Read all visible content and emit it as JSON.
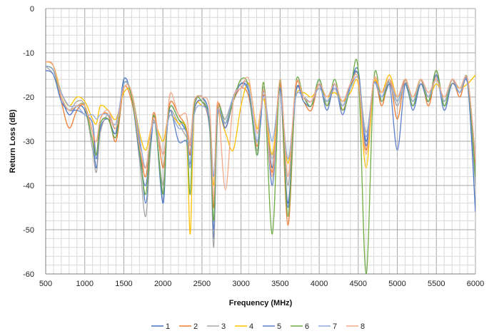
{
  "chart_data": {
    "type": "line",
    "title": "",
    "xlabel": "Frequency (MHz)",
    "ylabel": "Return Loss (dB)",
    "xlim": [
      500,
      6000
    ],
    "ylim": [
      -60,
      0
    ],
    "x_ticks": [
      500,
      1000,
      1500,
      2000,
      2500,
      3000,
      3500,
      4000,
      4500,
      5000,
      5500,
      6000
    ],
    "y_ticks": [
      0,
      -10,
      -20,
      -30,
      -40,
      -50,
      -60
    ],
    "grid": true,
    "legend_position": "bottom",
    "x": [
      500,
      600,
      700,
      800,
      900,
      1000,
      1100,
      1150,
      1200,
      1300,
      1400,
      1500,
      1600,
      1700,
      1780,
      1850,
      1900,
      2000,
      2050,
      2100,
      2200,
      2300,
      2350,
      2400,
      2500,
      2600,
      2650,
      2700,
      2800,
      2900,
      3000,
      3100,
      3200,
      3250,
      3300,
      3400,
      3500,
      3600,
      3700,
      3800,
      3900,
      4000,
      4100,
      4200,
      4300,
      4400,
      4500,
      4600,
      4700,
      4800,
      4900,
      5000,
      5100,
      5200,
      5300,
      5400,
      5500,
      5600,
      5700,
      5800,
      5900,
      6000
    ],
    "series": [
      {
        "name": "1",
        "color": "#4472C4",
        "values": [
          -13,
          -14,
          -20,
          -24,
          -22,
          -23,
          -30,
          -36,
          -27,
          -25,
          -28,
          -16,
          -20,
          -30,
          -44,
          -30,
          -25,
          -44,
          -28,
          -22,
          -25,
          -28,
          -33,
          -22,
          -20,
          -26,
          -52,
          -23,
          -26,
          -20,
          -17,
          -19,
          -30,
          -24,
          -19,
          -36,
          -18,
          -44,
          -19,
          -20,
          -22,
          -16,
          -22,
          -17,
          -22,
          -17,
          -14,
          -30,
          -17,
          -21,
          -17,
          -20,
          -17,
          -22,
          -17,
          -21,
          -14,
          -22,
          -17,
          -19,
          -17,
          -46
        ]
      },
      {
        "name": "2",
        "color": "#ED7D31",
        "values": [
          -12,
          -13,
          -21,
          -27,
          -23,
          -22,
          -28,
          -33,
          -25,
          -24,
          -30,
          -18,
          -21,
          -31,
          -38,
          -27,
          -24,
          -36,
          -27,
          -21,
          -24,
          -27,
          -33,
          -23,
          -21,
          -27,
          -45,
          -22,
          -27,
          -21,
          -18,
          -20,
          -31,
          -25,
          -20,
          -37,
          -17,
          -49,
          -18,
          -21,
          -23,
          -17,
          -22,
          -18,
          -23,
          -18,
          -15,
          -32,
          -16,
          -22,
          -16,
          -25,
          -16,
          -21,
          -16,
          -22,
          -15,
          -21,
          -16,
          -20,
          -16,
          -35
        ]
      },
      {
        "name": "3",
        "color": "#A5A5A5",
        "values": [
          -13,
          -15,
          -20,
          -23,
          -21,
          -22,
          -32,
          -37,
          -28,
          -24,
          -27,
          -17,
          -20,
          -34,
          -47,
          -29,
          -26,
          -40,
          -27,
          -23,
          -26,
          -29,
          -30,
          -22,
          -20,
          -28,
          -54,
          -24,
          -25,
          -20,
          -17,
          -18,
          -32,
          -24,
          -18,
          -34,
          -18,
          -40,
          -19,
          -20,
          -21,
          -17,
          -21,
          -17,
          -22,
          -17,
          -15,
          -28,
          -17,
          -20,
          -17,
          -22,
          -17,
          -21,
          -17,
          -20,
          -15,
          -22,
          -17,
          -19,
          -17,
          -40
        ]
      },
      {
        "name": "4",
        "color": "#FFC000",
        "values": [
          -12,
          -13,
          -19,
          -22,
          -20,
          -21,
          -25,
          -26,
          -22,
          -23,
          -25,
          -19,
          -19,
          -28,
          -32,
          -27,
          -26,
          -30,
          -26,
          -24,
          -26,
          -28,
          -51,
          -24,
          -22,
          -25,
          -40,
          -24,
          -28,
          -32,
          -22,
          -17,
          -27,
          -23,
          -21,
          -33,
          -19,
          -35,
          -20,
          -19,
          -20,
          -18,
          -20,
          -19,
          -21,
          -19,
          -17,
          -36,
          -17,
          -19,
          -15,
          -20,
          -16,
          -20,
          -16,
          -20,
          -17,
          -20,
          -17,
          -18,
          -17,
          -15
        ]
      },
      {
        "name": "5",
        "color": "#5B7FCC",
        "values": [
          -14,
          -15,
          -21,
          -23,
          -23,
          -24,
          -26,
          -34,
          -26,
          -25,
          -29,
          -17,
          -20,
          -33,
          -40,
          -29,
          -25,
          -42,
          -28,
          -23,
          -30,
          -30,
          -35,
          -23,
          -21,
          -27,
          -50,
          -24,
          -27,
          -21,
          -17,
          -19,
          -33,
          -26,
          -19,
          -40,
          -18,
          -45,
          -19,
          -21,
          -22,
          -17,
          -23,
          -17,
          -24,
          -17,
          -15,
          -31,
          -17,
          -20,
          -17,
          -32,
          -17,
          -23,
          -17,
          -21,
          -15,
          -23,
          -17,
          -19,
          -17,
          -38
        ]
      },
      {
        "name": "6",
        "color": "#70AD47",
        "values": [
          -13,
          -14,
          -20,
          -23,
          -22,
          -22,
          -30,
          -33,
          -26,
          -25,
          -29,
          -17,
          -20,
          -32,
          -42,
          -28,
          -25,
          -42,
          -27,
          -22,
          -25,
          -28,
          -42,
          -22,
          -21,
          -26,
          -48,
          -23,
          -26,
          -21,
          -16,
          -18,
          -33,
          -24,
          -18,
          -51,
          -16,
          -47,
          -17,
          -20,
          -22,
          -16,
          -22,
          -16,
          -23,
          -18,
          -14,
          -60,
          -16,
          -21,
          -16,
          -21,
          -16,
          -22,
          -16,
          -21,
          -14,
          -22,
          -16,
          -19,
          -16,
          -38
        ]
      },
      {
        "name": "7",
        "color": "#8EA9DB",
        "values": [
          -13,
          -14,
          -19,
          -22,
          -22,
          -24,
          -24,
          -25,
          -24,
          -24,
          -26,
          -17,
          -19,
          -29,
          -36,
          -28,
          -26,
          -33,
          -27,
          -24,
          -27,
          -28,
          -36,
          -24,
          -22,
          -25,
          -38,
          -23,
          -26,
          -20,
          -18,
          -18,
          -30,
          -24,
          -20,
          -30,
          -19,
          -34,
          -20,
          -20,
          -21,
          -18,
          -21,
          -18,
          -22,
          -18,
          -16,
          -29,
          -17,
          -20,
          -16,
          -21,
          -16,
          -21,
          -16,
          -20,
          -16,
          -21,
          -16,
          -19,
          -16,
          -34
        ]
      },
      {
        "name": "8",
        "color": "#F4A988",
        "values": [
          -12,
          -13,
          -20,
          -23,
          -22,
          -22,
          -28,
          -30,
          -25,
          -23,
          -27,
          -18,
          -19,
          -31,
          -36,
          -27,
          -25,
          -33,
          -26,
          -19,
          -24,
          -24,
          -31,
          -21,
          -20,
          -23,
          -43,
          -21,
          -41,
          -21,
          -18,
          -16,
          -28,
          -23,
          -19,
          -38,
          -16,
          -38,
          -17,
          -20,
          -21,
          -17,
          -20,
          -17,
          -21,
          -17,
          -16,
          -33,
          -16,
          -19,
          -16,
          -20,
          -16,
          -20,
          -16,
          -19,
          -16,
          -20,
          -16,
          -18,
          -16,
          -34
        ]
      }
    ]
  }
}
